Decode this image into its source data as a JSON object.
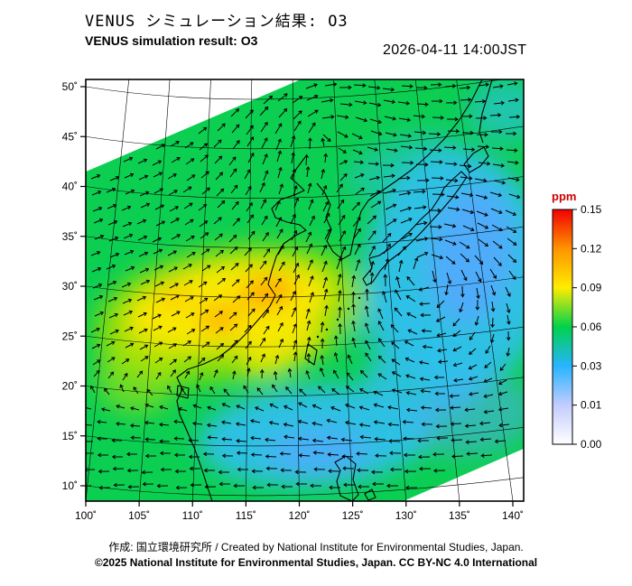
{
  "header": {
    "title_ja": "VENUS シミュレーション結果: O3",
    "title_en": "VENUS simulation result: O3",
    "datetime": "2026-04-11 14:00JST"
  },
  "chart_data": {
    "type": "heatmap",
    "title": "VENUS simulation result: O3",
    "title_ja": "VENUS シミュレーション結果: O3",
    "variable": "O3 (ozone) concentration with wind vector overlay",
    "unit": "ppm",
    "timestamp": "2026-04-11 14:00JST",
    "region": "East Asia (100E-140E, 10N-50N)",
    "projection": "rotated conic model domain drawn over curved lat/lon graticule",
    "grid": "on",
    "x_axis": {
      "label": "longitude",
      "ticks": [
        "100˚",
        "105˚",
        "110˚",
        "115˚",
        "120˚",
        "125˚",
        "130˚",
        "135˚",
        "140˚"
      ],
      "range": [
        100,
        140
      ]
    },
    "y_axis": {
      "label": "latitude",
      "ticks": [
        "50˚",
        "45˚",
        "40˚",
        "35˚",
        "30˚",
        "25˚",
        "20˚",
        "15˚",
        "10˚"
      ],
      "range": [
        10,
        50
      ]
    },
    "colorbar": {
      "label": "ppm",
      "label_color": "#cc0000",
      "position": "right",
      "ticks": [
        "0.15",
        "0.12",
        "0.09",
        "0.06",
        "0.03",
        "0.01",
        "0.00"
      ],
      "stops": [
        {
          "value": 0.15,
          "color": "#f20000"
        },
        {
          "value": 0.12,
          "color": "#ff9300"
        },
        {
          "value": 0.09,
          "color": "#ffec00"
        },
        {
          "value": 0.06,
          "color": "#00d24b"
        },
        {
          "value": 0.03,
          "color": "#27b4ff"
        },
        {
          "value": 0.01,
          "color": "#c3ccff"
        },
        {
          "value": 0.0,
          "color": "#ffffff"
        }
      ]
    },
    "wind_arrow_color": "#000000",
    "field_summary": [
      {
        "area": "most of domain",
        "value_ppm": "0.05-0.07",
        "appearance": "green"
      },
      {
        "area": "central/eastern China",
        "value_ppm": "0.09-0.12",
        "appearance": "yellow-orange maximum"
      },
      {
        "area": "western Pacific east of Japan",
        "value_ppm": "0.01-0.04",
        "appearance": "cyan-blue minimum"
      },
      {
        "area": "southern ocean band (~15-20N)",
        "value_ppm": "0.02-0.04",
        "appearance": "cyan-blue"
      },
      {
        "area": "east of Japan",
        "value_ppm": "",
        "appearance": "closed wind circulation (vortex)"
      }
    ]
  },
  "footer": {
    "credit": "作成: 国立環境研究所 / Created by National Institute for Environmental Studies, Japan.",
    "copyright": "©2025 National Institute for Environmental Studies, Japan. CC BY-NC 4.0 International"
  }
}
